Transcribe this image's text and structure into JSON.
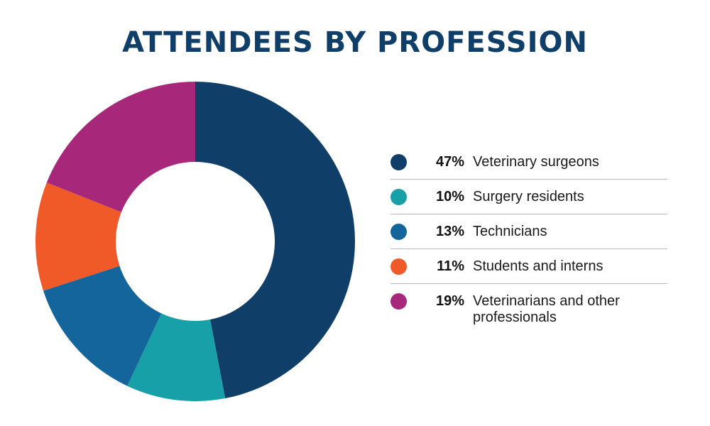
{
  "chart_data": {
    "type": "pie",
    "title": "ATTENDEES BY PROFESSION",
    "donut": true,
    "categories": [
      "Veterinary surgeons",
      "Surgery residents",
      "Technicians",
      "Students and interns",
      "Veterinarians and other professionals"
    ],
    "values": [
      47,
      10,
      13,
      11,
      19
    ],
    "value_labels": [
      "47%",
      "10%",
      "13%",
      "11%",
      "19%"
    ],
    "colors": [
      "#0f3e69",
      "#18a0a8",
      "#13659c",
      "#f05a28",
      "#a7287a"
    ],
    "legend_placement": "right"
  }
}
